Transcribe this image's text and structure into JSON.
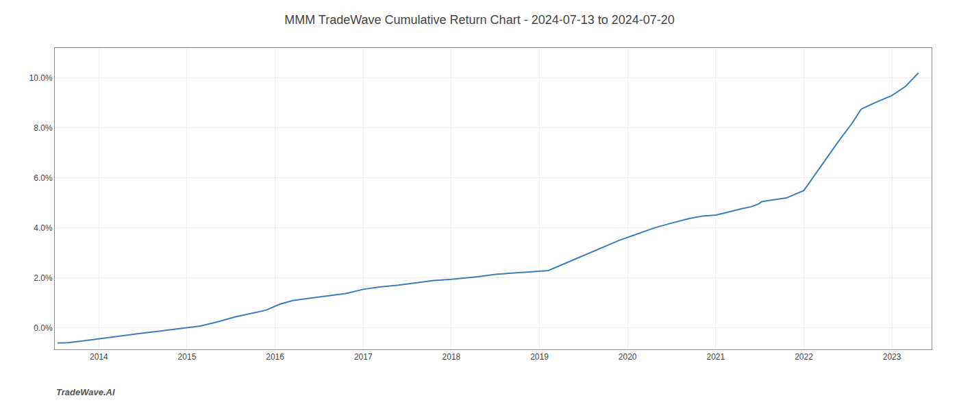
{
  "chart_data": {
    "type": "line",
    "title": "MMM TradeWave Cumulative Return Chart - 2024-07-13 to 2024-07-20",
    "annotations": [
      "TradeWave.AI"
    ],
    "color": "#3a7cbd",
    "x": [
      2013.53,
      2013.65,
      2013.8,
      2013.95,
      2014.1,
      2014.3,
      2014.5,
      2014.7,
      2014.9,
      2015.0,
      2015.15,
      2015.35,
      2015.55,
      2015.75,
      2015.9,
      2016.05,
      2016.2,
      2016.4,
      2016.6,
      2016.8,
      2017.0,
      2017.2,
      2017.4,
      2017.6,
      2017.8,
      2018.0,
      2018.15,
      2018.3,
      2018.5,
      2018.7,
      2018.9,
      2019.1,
      2019.3,
      2019.5,
      2019.7,
      2019.9,
      2020.1,
      2020.3,
      2020.5,
      2020.7,
      2020.85,
      2021.0,
      2021.1,
      2021.2,
      2021.3,
      2021.4,
      2021.48,
      2021.52,
      2021.6,
      2021.8,
      2022.0,
      2022.2,
      2022.4,
      2022.55,
      2022.65,
      2022.8,
      2023.0,
      2023.15,
      2023.3
    ],
    "values": [
      -0.6,
      -0.58,
      -0.52,
      -0.45,
      -0.38,
      -0.28,
      -0.2,
      -0.12,
      -0.04,
      0.01,
      0.08,
      0.25,
      0.45,
      0.6,
      0.72,
      0.95,
      1.1,
      1.2,
      1.3,
      1.38,
      1.55,
      1.65,
      1.72,
      1.82,
      1.9,
      1.95,
      2.0,
      2.05,
      2.15,
      2.2,
      2.25,
      2.3,
      2.6,
      2.9,
      3.2,
      3.5,
      3.75,
      4.0,
      4.2,
      4.38,
      4.48,
      4.52,
      4.6,
      4.7,
      4.78,
      4.85,
      4.95,
      5.05,
      5.1,
      5.2,
      5.5,
      6.5,
      7.5,
      8.2,
      8.75,
      9.0,
      9.3,
      9.65,
      10.2
    ],
    "xlim": [
      2013.5,
      2023.45
    ],
    "ylim": [
      -0.85,
      11.2
    ],
    "xticks": [
      2014,
      2015,
      2016,
      2017,
      2018,
      2019,
      2020,
      2021,
      2022,
      2023
    ],
    "yticks": [
      {
        "value": 0.0,
        "label": "0.0%"
      },
      {
        "value": 2.0,
        "label": "2.0%"
      },
      {
        "value": 4.0,
        "label": "4.0%"
      },
      {
        "value": 6.0,
        "label": "6.0%"
      },
      {
        "value": 8.0,
        "label": "8.0%"
      },
      {
        "value": 10.0,
        "label": "10.0%"
      }
    ],
    "grid": true
  }
}
